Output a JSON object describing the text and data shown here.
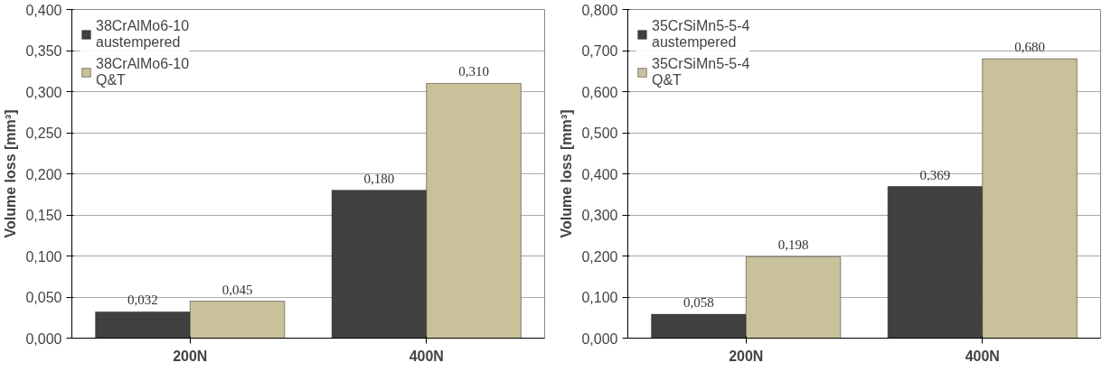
{
  "chart_data": [
    {
      "type": "bar",
      "ylabel": "Volume loss [mm³]",
      "categories": [
        "200N",
        "400N"
      ],
      "series": [
        {
          "name": "38CrAlMo6-10 austempered",
          "color": "#404040",
          "values": [
            0.032,
            0.18
          ],
          "value_labels": [
            "0,032",
            "0,180"
          ]
        },
        {
          "name": "38CrAlMo6-10 Q&T",
          "color": "#c9c19a",
          "values": [
            0.045,
            0.31
          ],
          "value_labels": [
            "0,045",
            "0,310"
          ]
        }
      ],
      "ylim": [
        0,
        0.4
      ],
      "yticks": [
        {
          "value": 0,
          "label": "0,000"
        },
        {
          "value": 0.05,
          "label": "0,050"
        },
        {
          "value": 0.1,
          "label": "0,100"
        },
        {
          "value": 0.15,
          "label": "0,150"
        },
        {
          "value": 0.2,
          "label": "0,200"
        },
        {
          "value": 0.25,
          "label": "0,250"
        },
        {
          "value": 0.3,
          "label": "0,300"
        },
        {
          "value": 0.35,
          "label": "0,350"
        },
        {
          "value": 0.4,
          "label": "0,400"
        }
      ],
      "grid": "y",
      "legend": "top left"
    },
    {
      "type": "bar",
      "ylabel": "Volume loss [mm³]",
      "categories": [
        "200N",
        "400N"
      ],
      "series": [
        {
          "name": "35CrSiMn5-5-4 austempered",
          "color": "#404040",
          "values": [
            0.058,
            0.369
          ],
          "value_labels": [
            "0,058",
            "0,369"
          ]
        },
        {
          "name": "35CrSiMn5-5-4 Q&T",
          "color": "#c9c19a",
          "values": [
            0.198,
            0.68
          ],
          "value_labels": [
            "0,198",
            "0,680"
          ]
        }
      ],
      "ylim": [
        0,
        0.8
      ],
      "yticks": [
        {
          "value": 0,
          "label": "0,000"
        },
        {
          "value": 0.1,
          "label": "0,100"
        },
        {
          "value": 0.2,
          "label": "0,200"
        },
        {
          "value": 0.3,
          "label": "0,300"
        },
        {
          "value": 0.4,
          "label": "0,400"
        },
        {
          "value": 0.5,
          "label": "0,500"
        },
        {
          "value": 0.6,
          "label": "0,600"
        },
        {
          "value": 0.7,
          "label": "0,700"
        },
        {
          "value": 0.8,
          "label": "0,800"
        }
      ],
      "grid": "y",
      "legend": "top left"
    }
  ]
}
